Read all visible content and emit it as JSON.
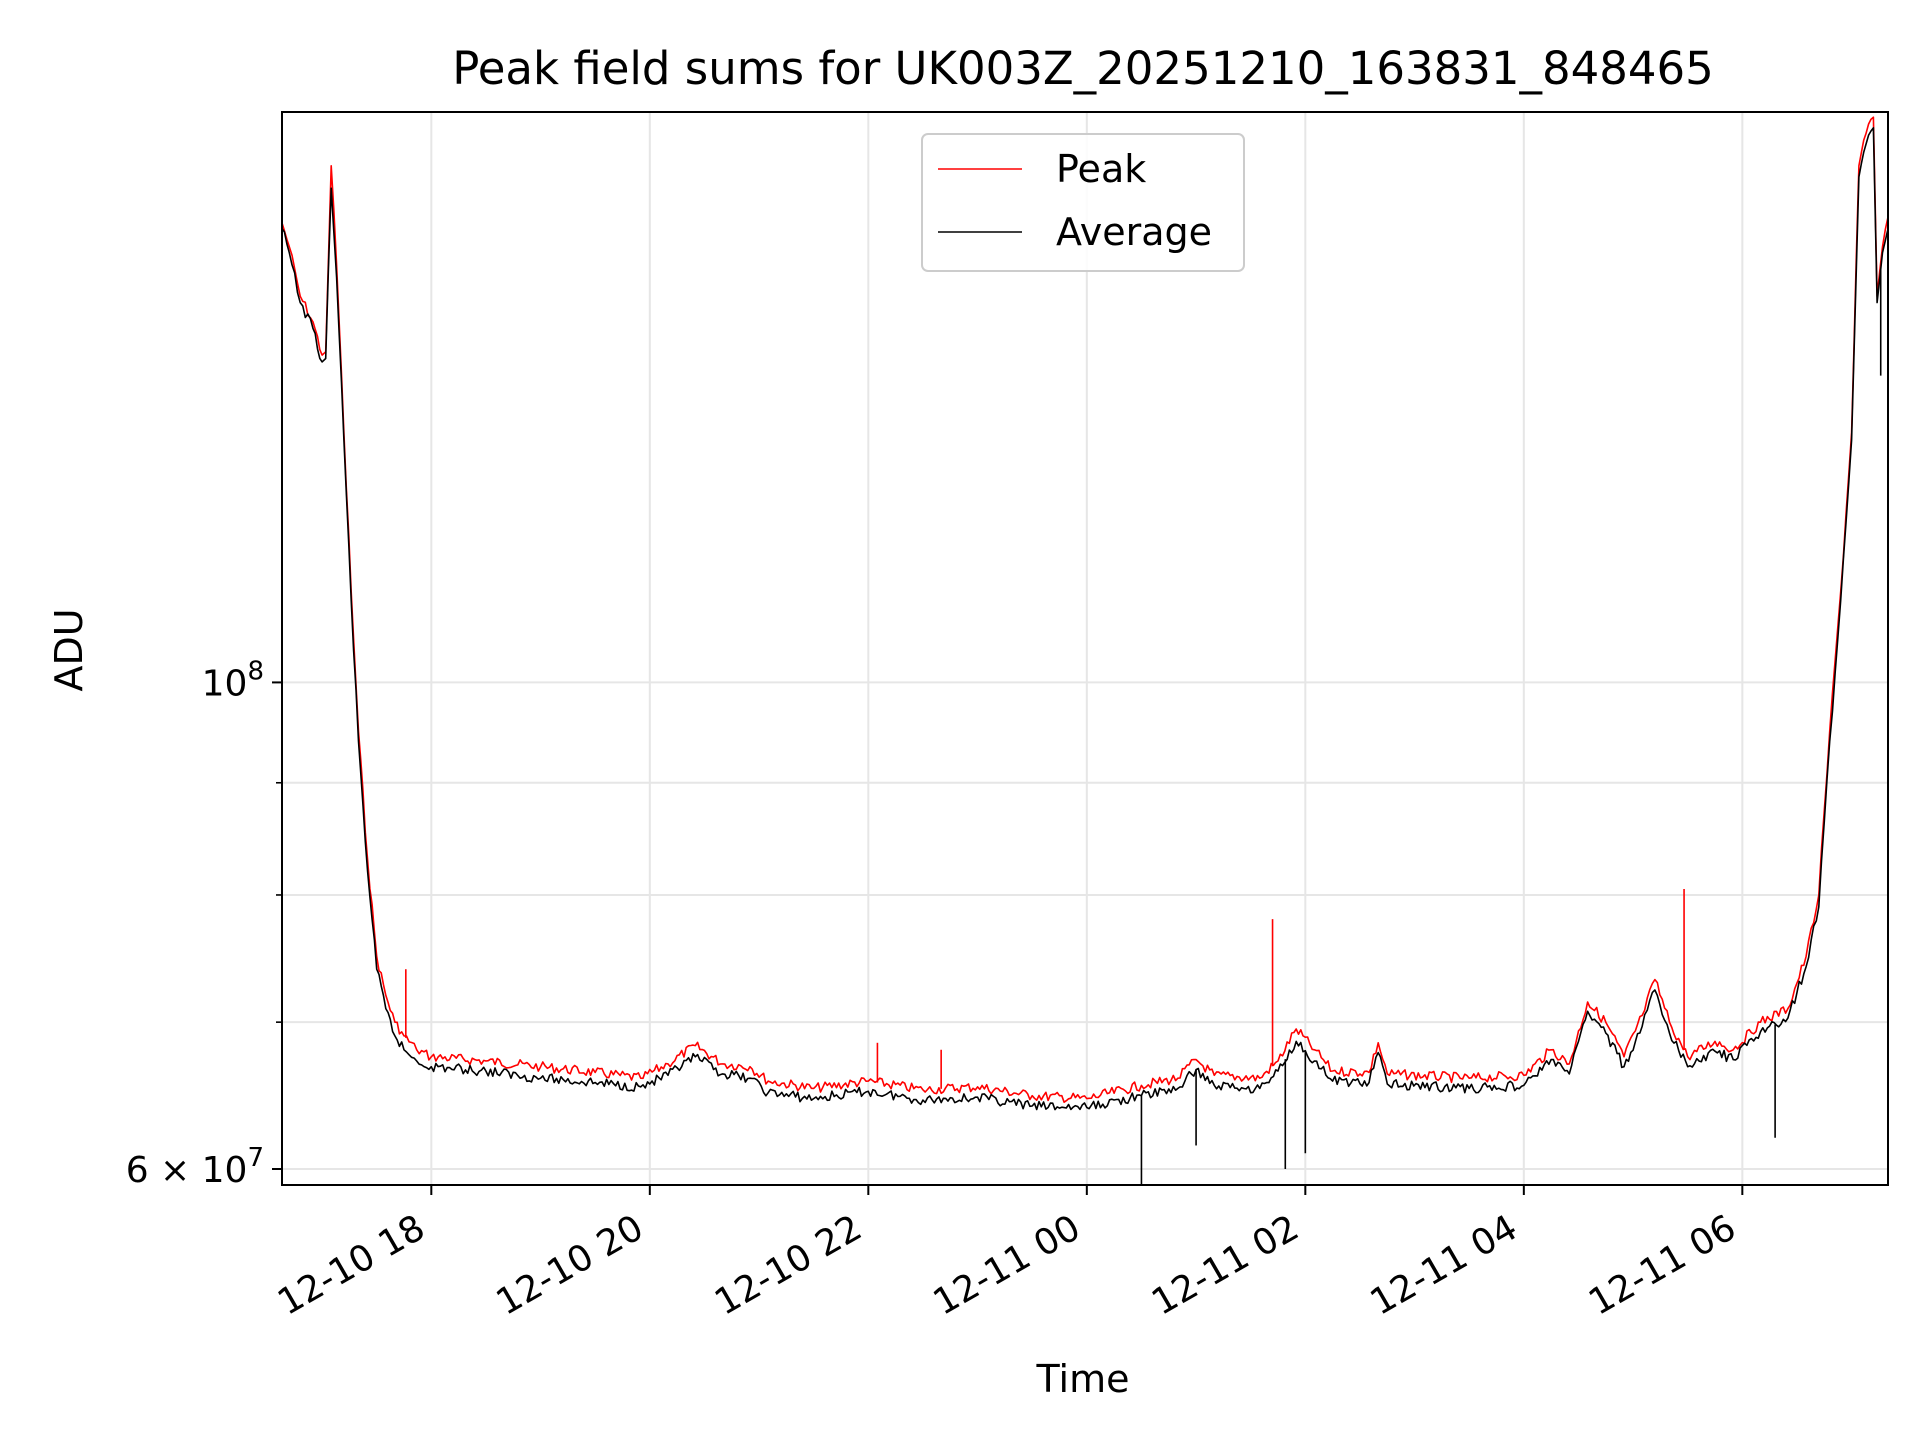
{
  "chart_data": {
    "type": "line",
    "title": "Peak field sums for UK003Z_20251210_163831_848465",
    "xlabel": "Time",
    "ylabel": "ADU",
    "y_scale": "log",
    "ylim": [
      59000000,
      182000000
    ],
    "xlim": [
      "2025-12-10 16:38",
      "2025-12-11 07:20"
    ],
    "grid": true,
    "legend_position": "upper-center",
    "x_ticks": [
      {
        "value": "2025-12-10 18:00",
        "label": "12-10 18"
      },
      {
        "value": "2025-12-10 20:00",
        "label": "12-10 20"
      },
      {
        "value": "2025-12-10 22:00",
        "label": "12-10 22"
      },
      {
        "value": "2025-12-11 00:00",
        "label": "12-11 00"
      },
      {
        "value": "2025-12-11 02:00",
        "label": "12-11 02"
      },
      {
        "value": "2025-12-11 04:00",
        "label": "12-11 04"
      },
      {
        "value": "2025-12-11 06:00",
        "label": "12-11 06"
      }
    ],
    "y_ticks": [
      {
        "value": 100000000,
        "label_base": "10",
        "label_exp": "8"
      },
      {
        "value": 60000000,
        "label_base": "6 × 10",
        "label_exp": "7"
      }
    ],
    "y_minor_ticks": [
      70000000,
      80000000,
      90000000
    ],
    "series": [
      {
        "name": "Peak",
        "color": "#ff0000",
        "points": [
          [
            "2025-12-10 16:38",
            162000000
          ],
          [
            "2025-12-10 16:42",
            158000000
          ],
          [
            "2025-12-10 16:48",
            150000000
          ],
          [
            "2025-12-10 16:55",
            146000000
          ],
          [
            "2025-12-10 17:00",
            141000000
          ],
          [
            "2025-12-10 17:02",
            141500000
          ],
          [
            "2025-12-10 17:05",
            172000000
          ],
          [
            "2025-12-10 17:08",
            155000000
          ],
          [
            "2025-12-10 17:12",
            130000000
          ],
          [
            "2025-12-10 17:16",
            110000000
          ],
          [
            "2025-12-10 17:20",
            95000000
          ],
          [
            "2025-12-10 17:25",
            83000000
          ],
          [
            "2025-12-10 17:30",
            75000000
          ],
          [
            "2025-12-10 17:35",
            72000000
          ],
          [
            "2025-12-10 17:40",
            70000000
          ],
          [
            "2025-12-10 17:45",
            69000000
          ],
          [
            "2025-12-10 17:52",
            68000000
          ],
          [
            "2025-12-10 18:00",
            67500000
          ],
          [
            "2025-12-10 18:30",
            67200000
          ],
          [
            "2025-12-10 19:00",
            66800000
          ],
          [
            "2025-12-10 19:30",
            66400000
          ],
          [
            "2025-12-10 19:55",
            66000000
          ],
          [
            "2025-12-10 20:10",
            67000000
          ],
          [
            "2025-12-10 20:25",
            68300000
          ],
          [
            "2025-12-10 20:40",
            67000000
          ],
          [
            "2025-12-10 20:55",
            66800000
          ],
          [
            "2025-12-10 21:05",
            65800000
          ],
          [
            "2025-12-10 21:30",
            65300000
          ],
          [
            "2025-12-10 22:00",
            65800000
          ],
          [
            "2025-12-10 22:30",
            65200000
          ],
          [
            "2025-12-10 23:00",
            65400000
          ],
          [
            "2025-12-10 23:30",
            64800000
          ],
          [
            "2025-12-11 00:00",
            64600000
          ],
          [
            "2025-12-11 00:30",
            65500000
          ],
          [
            "2025-12-11 00:50",
            66000000
          ],
          [
            "2025-12-11 01:00",
            67300000
          ],
          [
            "2025-12-11 01:10",
            66200000
          ],
          [
            "2025-12-11 01:35",
            66000000
          ],
          [
            "2025-12-11 01:45",
            67200000
          ],
          [
            "2025-12-11 01:55",
            69500000
          ],
          [
            "2025-12-11 02:05",
            68000000
          ],
          [
            "2025-12-11 02:15",
            66500000
          ],
          [
            "2025-12-11 02:35",
            66400000
          ],
          [
            "2025-12-11 02:40",
            68500000
          ],
          [
            "2025-12-11 02:45",
            66300000
          ],
          [
            "2025-12-11 03:30",
            66000000
          ],
          [
            "2025-12-11 04:00",
            66200000
          ],
          [
            "2025-12-11 04:15",
            68000000
          ],
          [
            "2025-12-11 04:25",
            67000000
          ],
          [
            "2025-12-11 04:35",
            71500000
          ],
          [
            "2025-12-11 04:45",
            70000000
          ],
          [
            "2025-12-11 04:55",
            67500000
          ],
          [
            "2025-12-11 05:05",
            70500000
          ],
          [
            "2025-12-11 05:12",
            73200000
          ],
          [
            "2025-12-11 05:20",
            70000000
          ],
          [
            "2025-12-11 05:30",
            67500000
          ],
          [
            "2025-12-11 05:45",
            68600000
          ],
          [
            "2025-12-11 05:55",
            68000000
          ],
          [
            "2025-12-11 06:10",
            70000000
          ],
          [
            "2025-12-11 06:25",
            71000000
          ],
          [
            "2025-12-11 06:35",
            75000000
          ],
          [
            "2025-12-11 06:42",
            80000000
          ],
          [
            "2025-12-11 06:48",
            95000000
          ],
          [
            "2025-12-11 06:54",
            110000000
          ],
          [
            "2025-12-11 07:00",
            130000000
          ],
          [
            "2025-12-11 07:04",
            172000000
          ],
          [
            "2025-12-11 07:08",
            178000000
          ],
          [
            "2025-12-11 07:12",
            181000000
          ],
          [
            "2025-12-11 07:14",
            150000000
          ],
          [
            "2025-12-11 07:17",
            158000000
          ],
          [
            "2025-12-11 07:20",
            163000000
          ]
        ]
      },
      {
        "name": "Average",
        "color": "#000000",
        "points": [
          [
            "2025-12-10 16:38",
            161000000
          ],
          [
            "2025-12-10 16:42",
            157000000
          ],
          [
            "2025-12-10 16:48",
            149000000
          ],
          [
            "2025-12-10 16:55",
            145000000
          ],
          [
            "2025-12-10 17:00",
            140000000
          ],
          [
            "2025-12-10 17:02",
            140500000
          ],
          [
            "2025-12-10 17:05",
            168000000
          ],
          [
            "2025-12-10 17:08",
            153000000
          ],
          [
            "2025-12-10 17:12",
            129000000
          ],
          [
            "2025-12-10 17:16",
            109000000
          ],
          [
            "2025-12-10 17:20",
            94000000
          ],
          [
            "2025-12-10 17:25",
            82000000
          ],
          [
            "2025-12-10 17:30",
            74000000
          ],
          [
            "2025-12-10 17:35",
            71000000
          ],
          [
            "2025-12-10 17:40",
            69000000
          ],
          [
            "2025-12-10 17:45",
            68000000
          ],
          [
            "2025-12-10 17:52",
            67200000
          ],
          [
            "2025-12-10 18:00",
            66800000
          ],
          [
            "2025-12-10 18:30",
            66500000
          ],
          [
            "2025-12-10 19:00",
            66000000
          ],
          [
            "2025-12-10 19:30",
            65700000
          ],
          [
            "2025-12-10 19:55",
            65400000
          ],
          [
            "2025-12-10 20:10",
            66200000
          ],
          [
            "2025-12-10 20:25",
            67500000
          ],
          [
            "2025-12-10 20:40",
            66300000
          ],
          [
            "2025-12-10 20:55",
            66000000
          ],
          [
            "2025-12-10 21:05",
            65000000
          ],
          [
            "2025-12-10 21:30",
            64600000
          ],
          [
            "2025-12-10 22:00",
            65100000
          ],
          [
            "2025-12-10 22:30",
            64500000
          ],
          [
            "2025-12-10 23:00",
            64700000
          ],
          [
            "2025-12-10 23:30",
            64100000
          ],
          [
            "2025-12-11 00:00",
            64000000
          ],
          [
            "2025-12-11 00:30",
            64800000
          ],
          [
            "2025-12-11 00:50",
            65300000
          ],
          [
            "2025-12-11 01:00",
            66600000
          ],
          [
            "2025-12-11 01:10",
            65500000
          ],
          [
            "2025-12-11 01:35",
            65300000
          ],
          [
            "2025-12-11 01:45",
            66500000
          ],
          [
            "2025-12-11 01:55",
            68600000
          ],
          [
            "2025-12-11 02:05",
            67200000
          ],
          [
            "2025-12-11 02:15",
            65800000
          ],
          [
            "2025-12-11 02:35",
            65700000
          ],
          [
            "2025-12-11 02:40",
            67800000
          ],
          [
            "2025-12-11 02:45",
            65600000
          ],
          [
            "2025-12-11 03:30",
            65300000
          ],
          [
            "2025-12-11 04:00",
            65500000
          ],
          [
            "2025-12-11 04:15",
            67300000
          ],
          [
            "2025-12-11 04:25",
            66300000
          ],
          [
            "2025-12-11 04:35",
            70800000
          ],
          [
            "2025-12-11 04:45",
            69200000
          ],
          [
            "2025-12-11 04:55",
            66800000
          ],
          [
            "2025-12-11 05:05",
            69700000
          ],
          [
            "2025-12-11 05:12",
            72400000
          ],
          [
            "2025-12-11 05:20",
            69200000
          ],
          [
            "2025-12-11 05:30",
            66800000
          ],
          [
            "2025-12-11 05:45",
            67900000
          ],
          [
            "2025-12-11 05:55",
            67300000
          ],
          [
            "2025-12-11 06:10",
            69300000
          ],
          [
            "2025-12-11 06:25",
            70300000
          ],
          [
            "2025-12-11 06:35",
            74200000
          ],
          [
            "2025-12-11 06:42",
            79000000
          ],
          [
            "2025-12-11 06:48",
            94000000
          ],
          [
            "2025-12-11 06:54",
            109000000
          ],
          [
            "2025-12-11 07:00",
            129000000
          ],
          [
            "2025-12-11 07:04",
            170000000
          ],
          [
            "2025-12-11 07:08",
            176000000
          ],
          [
            "2025-12-11 07:12",
            179000000
          ],
          [
            "2025-12-11 07:14",
            149000000
          ],
          [
            "2025-12-11 07:17",
            157000000
          ],
          [
            "2025-12-11 07:20",
            161000000
          ]
        ]
      }
    ],
    "spikes": [
      {
        "series": "Peak",
        "time": "2025-12-10 17:46",
        "value": 74000000
      },
      {
        "series": "Peak",
        "time": "2025-12-10 22:05",
        "value": 68500000
      },
      {
        "series": "Peak",
        "time": "2025-12-10 22:40",
        "value": 68000000
      },
      {
        "series": "Peak",
        "time": "2025-12-11 01:42",
        "value": 78000000
      },
      {
        "series": "Peak",
        "time": "2025-12-11 05:28",
        "value": 80500000
      },
      {
        "series": "Average",
        "time": "2025-12-11 00:30",
        "value": 59000000
      },
      {
        "series": "Average",
        "time": "2025-12-11 01:00",
        "value": 61500000
      },
      {
        "series": "Average",
        "time": "2025-12-11 01:49",
        "value": 60000000
      },
      {
        "series": "Average",
        "time": "2025-12-11 02:00",
        "value": 61000000
      },
      {
        "series": "Average",
        "time": "2025-12-11 06:18",
        "value": 62000000
      },
      {
        "series": "Average",
        "time": "2025-12-11 07:16",
        "value": 138000000
      }
    ]
  }
}
